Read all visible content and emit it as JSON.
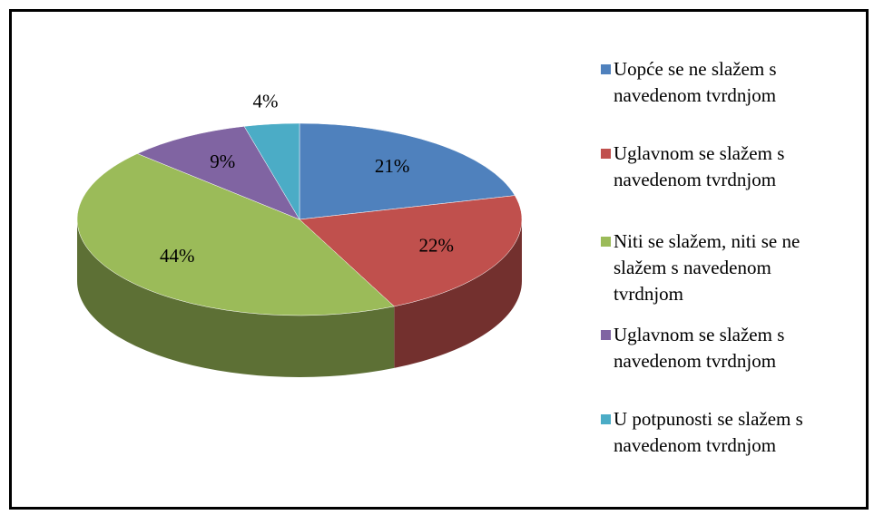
{
  "chart_data": {
    "type": "pie",
    "categories": [
      "Uopće se ne slažem s navedenom tvrdnjom",
      "Uglavnom se slažem s navedenom tvrdnjom",
      "Niti se slažem, niti se ne slažem s navedenom tvrdnjom",
      "Uglavnom se slažem s navedenom tvrdnjom",
      "U potpunosti se slažem s navedenom tvrdnjom"
    ],
    "values": [
      21,
      22,
      44,
      9,
      4
    ],
    "value_labels": [
      "21%",
      "22%",
      "44%",
      "9%",
      "4%"
    ],
    "colors": [
      "#4f81bd",
      "#c0504d",
      "#9bbb59",
      "#8064a2",
      "#4bacc6"
    ],
    "legend": "right"
  }
}
